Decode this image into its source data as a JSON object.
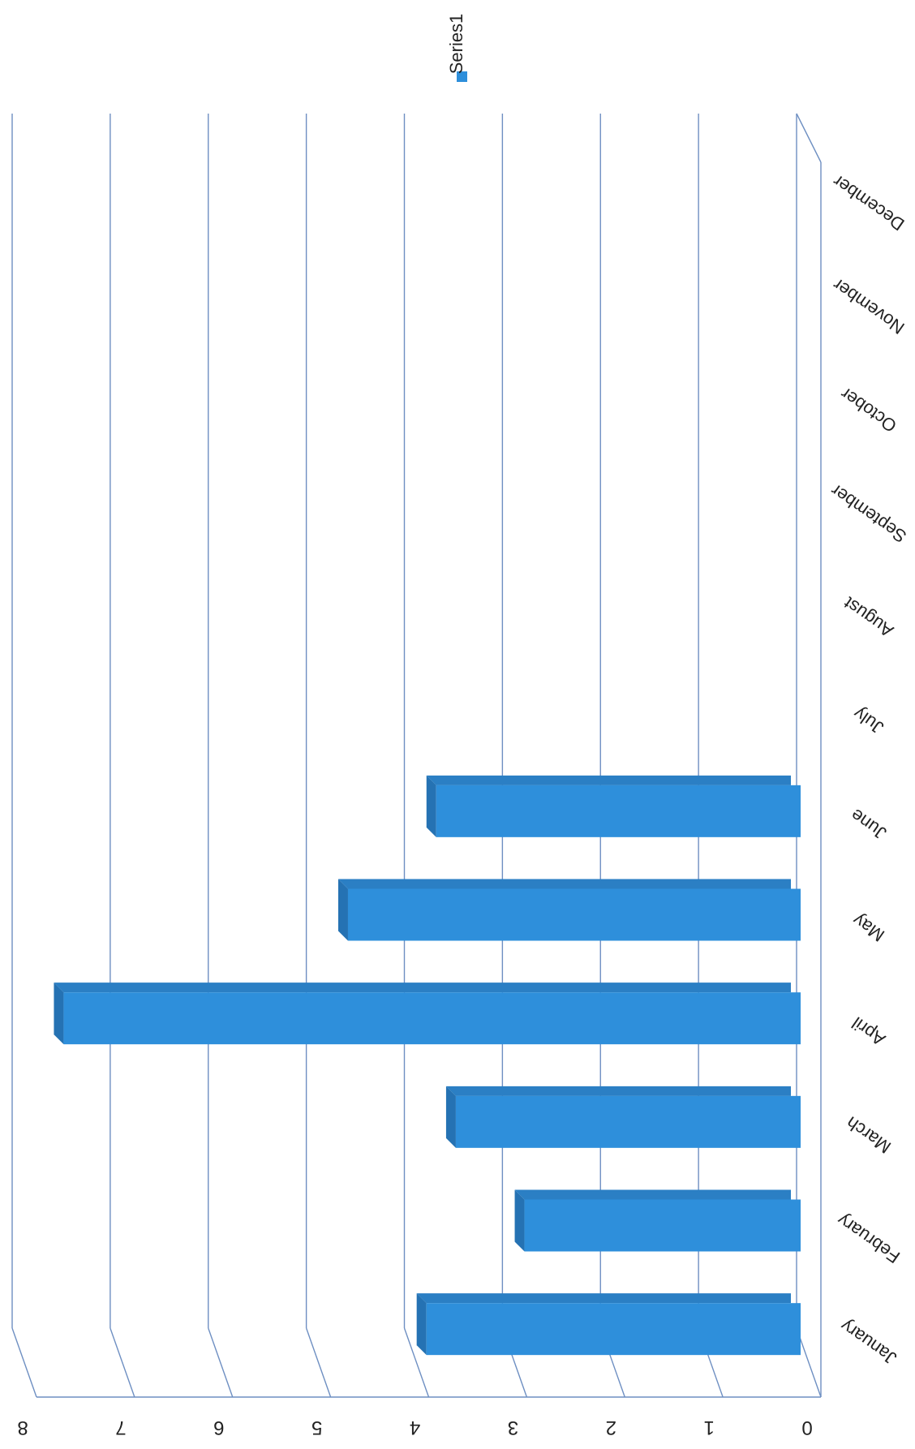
{
  "chart_data": {
    "type": "bar",
    "orientation": "horizontal",
    "three_d": true,
    "rotated_upside_down": true,
    "categories": [
      "January",
      "February",
      "March",
      "April",
      "May",
      "June",
      "July",
      "August",
      "September",
      "October",
      "November",
      "December"
    ],
    "series": [
      {
        "name": "Series1",
        "color": "#2E8FDB",
        "values": [
          3.8,
          2.8,
          3.5,
          7.5,
          4.6,
          3.7,
          0,
          0,
          0,
          0,
          0,
          0
        ]
      }
    ],
    "value_axis": {
      "min": 0,
      "max": 8,
      "ticks": [
        0,
        1,
        2,
        3,
        4,
        5,
        6,
        7,
        8
      ]
    },
    "grid": true,
    "legend": {
      "position": "top",
      "entries": [
        "Series1"
      ]
    },
    "title": "",
    "xlabel": "",
    "ylabel": ""
  }
}
